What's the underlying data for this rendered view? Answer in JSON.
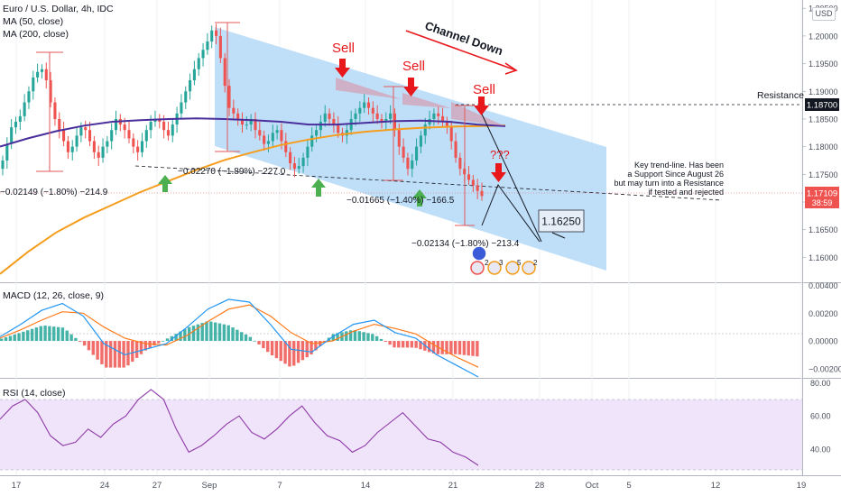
{
  "header": {
    "symbol_line": "Euro / U.S. Dollar, 4h, IDC",
    "ma50_label": "MA (50, close)",
    "ma200_label": "MA (200, close)",
    "currency_badge": "USD"
  },
  "price_pane": {
    "y_ticks": [
      "1.20500",
      "1.20000",
      "1.19500",
      "1.19000",
      "1.18500",
      "1.18000",
      "1.17500",
      "1.17000",
      "1.16500",
      "1.16000"
    ],
    "last_price": "1.17109",
    "countdown": "38:59",
    "resistance_price": "1.18700",
    "resistance_label": "Resistance"
  },
  "annotations": {
    "sell_labels": [
      "Sell",
      "Sell",
      "Sell"
    ],
    "question_label": "???",
    "channel_label": "Channel Down",
    "target_label": "1.16250",
    "measure_1": "−0.02149 (−1.80%) −214.9",
    "measure_2": "−0.02270 (−1.89%) −227.0",
    "measure_3": "−0.01665 (−1.40%) −166.5",
    "measure_4": "−0.02134 (−1.80%) −213.4",
    "trendline_note": [
      "Key trend-line. Has been",
      "a Support Since August 26",
      "but may turn into a Resistance",
      "if tested and rejected"
    ],
    "event_counts": [
      "2",
      "3",
      "5",
      "2"
    ]
  },
  "macd_pane": {
    "title": "MACD (12, 26, close, 9)",
    "y_ticks": [
      "0.00400",
      "0.00200",
      "0.00000",
      "−0.00200"
    ]
  },
  "rsi_pane": {
    "title": "RSI (14, close)",
    "y_ticks": [
      "80.00",
      "60.00",
      "40.00"
    ]
  },
  "x_axis": {
    "ticks": [
      "17",
      "24",
      "27",
      "Sep",
      "7",
      "14",
      "21",
      "28",
      "Oct",
      "5",
      "12",
      "19"
    ]
  },
  "colors": {
    "up_candle": "#26a69a",
    "down_candle": "#ef5350",
    "ma50": "#4a2f9c",
    "ma200": "#f59d1c",
    "channel_fill": "#a9d4f7",
    "sell_arrow": "#e8171b",
    "buy_arrow": "#4caf50",
    "macd_line": "#2196f3",
    "signal_line": "#ff7a1a",
    "rsi_line": "#8e3aa8",
    "rsi_band": "#f0e4fa"
  },
  "chart_data": [
    {
      "type": "candlestick",
      "title": "Euro / U.S. Dollar, 4h, IDC",
      "x_start": "2020-08-13",
      "x_end": "2020-09-22",
      "ylim": [
        1.1555,
        1.2065
      ],
      "close_values": [
        1.1775,
        1.1805,
        1.1835,
        1.1845,
        1.1855,
        1.188,
        1.19,
        1.1925,
        1.1935,
        1.194,
        1.192,
        1.188,
        1.185,
        1.183,
        1.181,
        1.179,
        1.18,
        1.182,
        1.1835,
        1.183,
        1.181,
        1.179,
        1.178,
        1.18,
        1.181,
        1.183,
        1.185,
        1.184,
        1.183,
        1.1815,
        1.18,
        1.179,
        1.181,
        1.183,
        1.1845,
        1.185,
        1.1845,
        1.183,
        1.182,
        1.184,
        1.186,
        1.188,
        1.19,
        1.192,
        1.194,
        1.196,
        1.1975,
        1.199,
        1.201,
        1.2,
        1.196,
        1.191,
        1.187,
        1.186,
        1.185,
        1.184,
        1.184,
        1.185,
        1.183,
        1.182,
        1.1805,
        1.181,
        1.1825,
        1.183,
        1.181,
        1.179,
        1.177,
        1.176,
        1.1765,
        1.178,
        1.18,
        1.182,
        1.183,
        1.1845,
        1.186,
        1.185,
        1.184,
        1.1825,
        1.182,
        1.183,
        1.185,
        1.186,
        1.187,
        1.188,
        1.187,
        1.186,
        1.185,
        1.1845,
        1.185,
        1.186,
        1.183,
        1.18,
        1.178,
        1.176,
        1.1775,
        1.18,
        1.182,
        1.184,
        1.185,
        1.186,
        1.1855,
        1.1845,
        1.1835,
        1.181,
        1.178,
        1.176,
        1.175,
        1.174,
        1.173,
        1.172,
        1.1711
      ],
      "series": [
        {
          "name": "MA (50, close)",
          "values": [
            1.18,
            1.1815,
            1.1828,
            1.1838,
            1.1845,
            1.1848,
            1.185,
            1.1851,
            1.185,
            1.1848,
            1.1845,
            1.184,
            1.184,
            1.1843,
            1.1846,
            1.1847,
            1.1845,
            1.184,
            1.1837
          ]
        },
        {
          "name": "MA (200, close)",
          "values": [
            1.157,
            1.161,
            1.1645,
            1.1672,
            1.1695,
            1.1718,
            1.1738,
            1.1758,
            1.1776,
            1.179,
            1.1803,
            1.1813,
            1.1821,
            1.1827,
            1.1831,
            1.1834,
            1.1836,
            1.1837,
            1.1838
          ]
        }
      ]
    },
    {
      "type": "bar",
      "title": "MACD (12, 26, close, 9)",
      "ylim": [
        -0.0026,
        0.0041
      ],
      "series": [
        {
          "name": "MACD",
          "values": [
            0.0003,
            0.0012,
            0.0022,
            0.0027,
            0.0018,
            -0.0002,
            -0.001,
            -0.0006,
            -0.0002,
            0.001,
            0.0023,
            0.003,
            0.0028,
            0.0012,
            -0.0006,
            -0.0008,
            0.0003,
            0.0012,
            0.0015,
            0.0006,
            0.0002,
            -0.001,
            -0.0018,
            -0.0026
          ]
        },
        {
          "name": "Signal",
          "values": [
            0.0002,
            0.0008,
            0.0015,
            0.0021,
            0.002,
            0.001,
            0.0002,
            -0.0002,
            -0.0003,
            0.0004,
            0.0014,
            0.0023,
            0.0026,
            0.0018,
            0.0006,
            -0.0002,
            0.0,
            0.0007,
            0.0012,
            0.0009,
            0.0005,
            -0.0004,
            -0.0012,
            -0.0019
          ]
        }
      ]
    },
    {
      "type": "line",
      "title": "RSI (14, close)",
      "ylim": [
        24,
        82
      ],
      "series": [
        {
          "name": "RSI",
          "values": [
            58,
            66,
            70,
            62,
            48,
            42,
            44,
            52,
            47,
            55,
            60,
            70,
            76,
            70,
            52,
            38,
            42,
            48,
            55,
            60,
            50,
            46,
            52,
            60,
            66,
            56,
            48,
            45,
            38,
            42,
            50,
            56,
            62,
            54,
            46,
            44,
            38,
            35,
            30
          ]
        }
      ]
    }
  ]
}
